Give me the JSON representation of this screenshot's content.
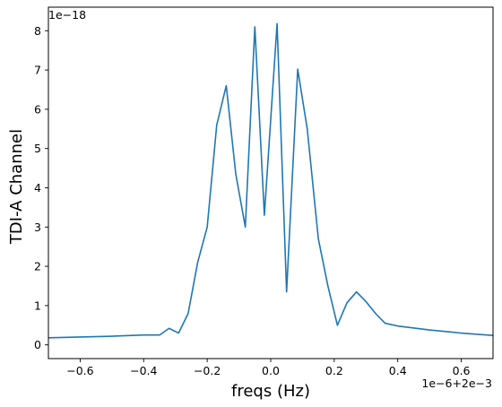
{
  "chart_data": {
    "type": "line",
    "xlabel": "freqs (Hz)",
    "ylabel": "TDI-A Channel",
    "x_offset_label": "1e−6+2e−3",
    "y_offset_label": "1e−18",
    "xlim": [
      -0.7,
      0.7
    ],
    "ylim": [
      -0.35,
      8.6
    ],
    "x_ticks": [
      -0.6,
      -0.4,
      -0.2,
      0.0,
      0.2,
      0.4,
      0.6
    ],
    "x_tick_labels": [
      "−0.6",
      "−0.4",
      "−0.2",
      "0.0",
      "0.2",
      "0.4",
      "0.6"
    ],
    "y_ticks": [
      0,
      1,
      2,
      3,
      4,
      5,
      6,
      7,
      8
    ],
    "y_tick_labels": [
      "0",
      "1",
      "2",
      "3",
      "4",
      "5",
      "6",
      "7",
      "8"
    ],
    "grid": false,
    "color": "#1f77b4",
    "series": [
      {
        "x": [
          -0.7,
          -0.6,
          -0.5,
          -0.4,
          -0.35,
          -0.32,
          -0.29,
          -0.26,
          -0.23,
          -0.2,
          -0.17,
          -0.14,
          -0.11,
          -0.08,
          -0.05,
          -0.02,
          0.02,
          0.05,
          0.085,
          0.115,
          0.15,
          0.18,
          0.21,
          0.24,
          0.27,
          0.3,
          0.33,
          0.36,
          0.4,
          0.5,
          0.6,
          0.7
        ],
        "y": [
          0.18,
          0.2,
          0.22,
          0.25,
          0.25,
          0.42,
          0.3,
          0.8,
          2.1,
          3.0,
          5.6,
          6.6,
          4.35,
          3.0,
          8.1,
          3.3,
          8.18,
          1.35,
          7.02,
          5.5,
          2.7,
          1.5,
          0.5,
          1.07,
          1.35,
          1.1,
          0.8,
          0.55,
          0.48,
          0.38,
          0.3,
          0.24
        ]
      }
    ]
  }
}
